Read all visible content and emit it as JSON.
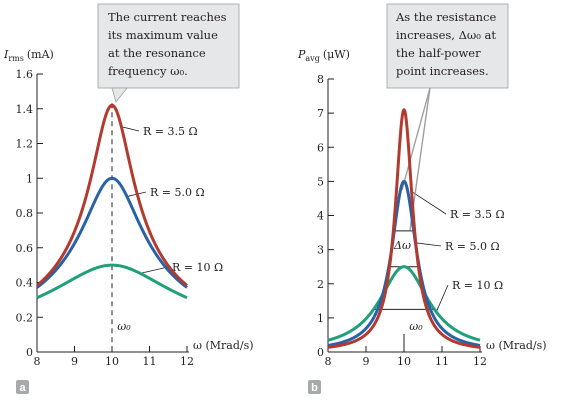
{
  "chart_data": [
    {
      "type": "line",
      "panel_label": "a",
      "ylabel": "I_rms (mA)",
      "ylabel_main": "I",
      "ylabel_sub": "rms",
      "ylabel_unit": "(mA)",
      "xlabel": "ω (Mrad/s)",
      "xlim": [
        8,
        12
      ],
      "ylim": [
        0,
        1.6
      ],
      "x_ticks": [
        "8",
        "9",
        "10",
        "11",
        "12"
      ],
      "y_ticks": [
        "0",
        "0.2",
        "0.4",
        "0.6",
        "0.8",
        "1",
        "1.2",
        "1.4",
        "1.6"
      ],
      "omega0": 10,
      "omega0_label": "ω₀",
      "callout": [
        "The current reaches",
        "its maximum value",
        "at the resonance",
        "frequency ω₀."
      ],
      "series": [
        {
          "name": "R = 3.5 Ω",
          "color": "#b33a2e",
          "peak": 1.42,
          "R": 3.5
        },
        {
          "name": "R = 5.0 Ω",
          "color": "#2a62a8",
          "peak": 1.0,
          "R": 5.0
        },
        {
          "name": "R = 10 Ω",
          "color": "#1fa07a",
          "peak": 0.5,
          "R": 10
        }
      ]
    },
    {
      "type": "line",
      "panel_label": "b",
      "ylabel": "P_avg (μW)",
      "ylabel_main": "P",
      "ylabel_sub": "avg",
      "ylabel_unit": "(μW)",
      "xlabel": "ω (Mrad/s)",
      "xlim": [
        8,
        12
      ],
      "ylim": [
        0,
        8
      ],
      "x_ticks": [
        "8",
        "9",
        "10",
        "11",
        "12"
      ],
      "y_ticks": [
        "0",
        "1",
        "2",
        "3",
        "4",
        "5",
        "6",
        "7",
        "8"
      ],
      "omega0": 10,
      "omega0_label": "ω₀",
      "delta_label": "Δω",
      "callout": [
        "As the resistance",
        "increases, Δω₀ at",
        "the half-power",
        "point increases."
      ],
      "series": [
        {
          "name": "R = 3.5 Ω",
          "color": "#b33a2e",
          "peak": 7.1,
          "R": 3.5
        },
        {
          "name": "R = 5.0 Ω",
          "color": "#2a62a8",
          "peak": 5.0,
          "R": 5.0
        },
        {
          "name": "R = 10 Ω",
          "color": "#1fa07a",
          "peak": 2.5,
          "R": 10
        }
      ]
    }
  ]
}
